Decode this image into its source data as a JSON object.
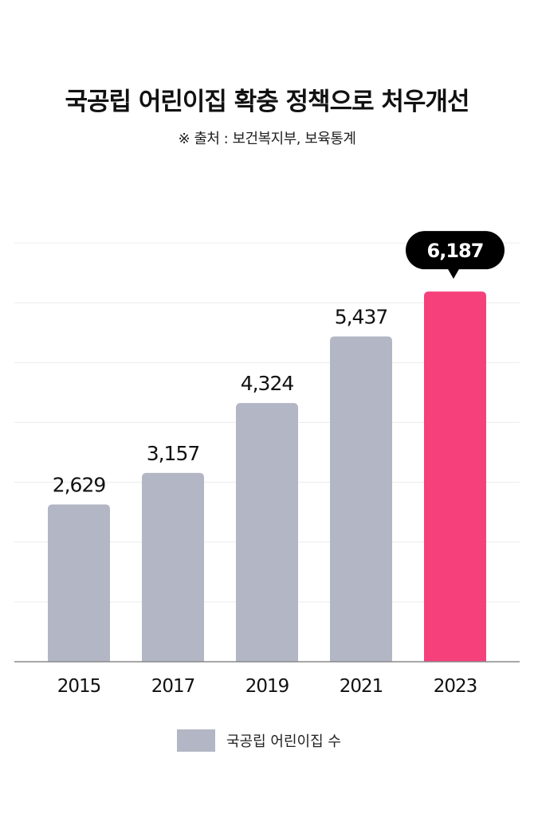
{
  "chart_data": {
    "type": "bar",
    "title": "국공립 어린이집 확충 정책으로 처우개선",
    "subtitle": "※ 출처 : 보건복지부, 보육통계",
    "categories": [
      "2015",
      "2017",
      "2019",
      "2021",
      "2023"
    ],
    "series": [
      {
        "name": "국공립 어린이집 수",
        "values": [
          2629,
          3157,
          4324,
          5437,
          6187
        ],
        "value_labels": [
          "2,629",
          "3,157",
          "4,324",
          "5,437",
          "6,187"
        ]
      }
    ],
    "highlight_index": 4,
    "ylim": [
      0,
      7000
    ],
    "grid": true,
    "legend_position": "bottom",
    "colors": {
      "bar": "#b3b6c4",
      "highlight": "#f5407b",
      "callout": "#000000",
      "grid": "#ececec",
      "axis": "#888888"
    }
  }
}
